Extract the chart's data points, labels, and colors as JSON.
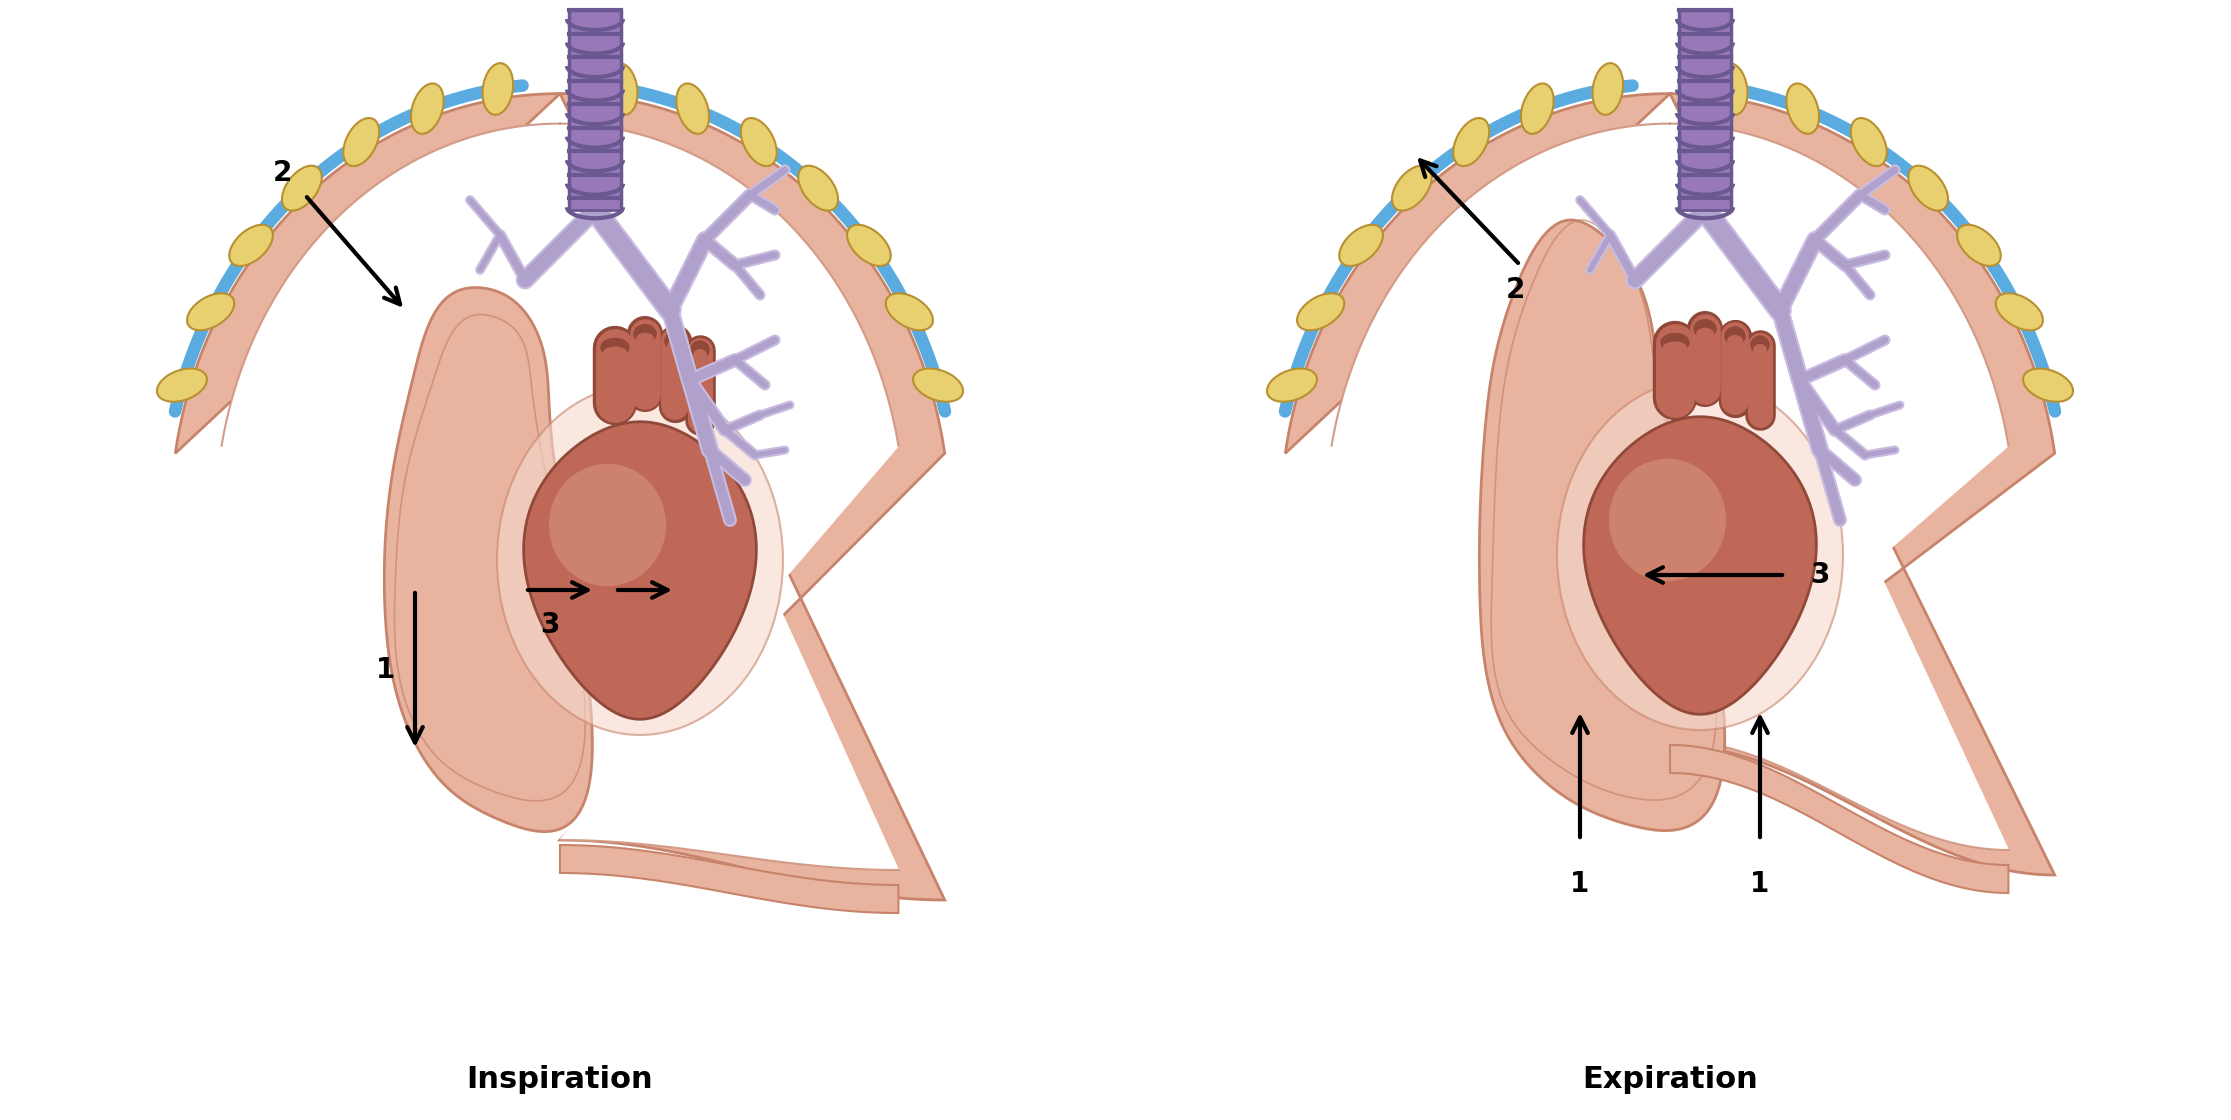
{
  "bg_color": "#ffffff",
  "c_lung": "#e8b4a0",
  "c_lung_dark": "#c8846a",
  "c_lung_light": "#f5d8cc",
  "c_white": "#ffffff",
  "c_rib_blue": "#5aace0",
  "c_rib_yellow": "#e8d070",
  "c_rib_yellow_dark": "#b89030",
  "c_trachea": "#9878b8",
  "c_trachea_dark": "#6a5890",
  "c_bronchi": "#b0a0cc",
  "c_bronchi_fill": "#c8bce0",
  "c_heart": "#c06858",
  "c_heart_dark": "#904838",
  "c_heart_light": "#d89880",
  "c_vessel": "#b05848",
  "title_insp": "Inspiration",
  "title_exp": "Expiration",
  "title_fontsize": 22,
  "label_fontsize": 20
}
